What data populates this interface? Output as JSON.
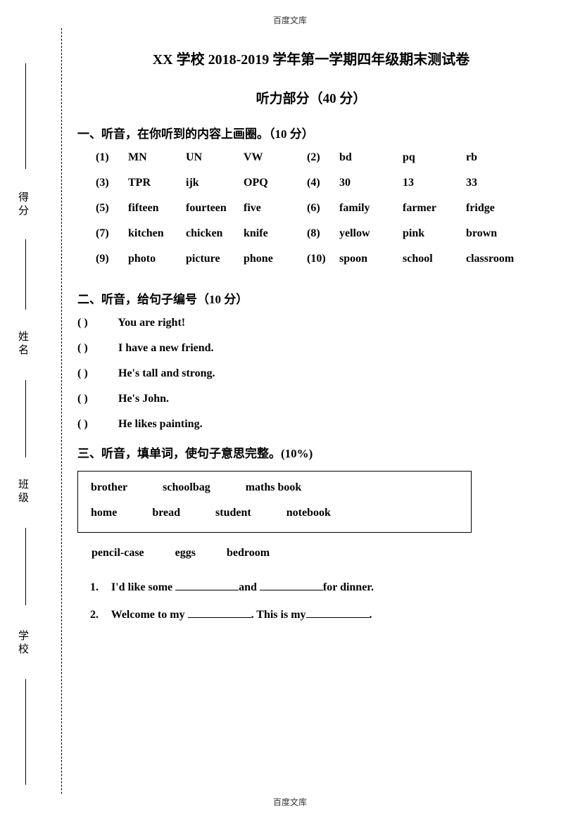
{
  "watermark": "百度文库",
  "title": "XX 学校 2018-2019 学年第一学期四年级期末测试卷",
  "subtitle": "听力部分（40 分）",
  "binding_labels": {
    "defen": "得分",
    "xingming": "姓名",
    "banji": "班级",
    "xuexiao": "学校"
  },
  "section1": {
    "heading": "一、听音，在你听到的内容上画圈。（10 分）",
    "rows": [
      {
        "ln": "(1)",
        "lo": [
          "MN",
          "UN",
          "VW"
        ],
        "rn": "(2)",
        "ro": [
          "bd",
          "pq",
          "rb"
        ]
      },
      {
        "ln": "(3)",
        "lo": [
          "TPR",
          "ijk",
          "OPQ"
        ],
        "rn": "(4)",
        "ro": [
          "30",
          "13",
          "33"
        ]
      },
      {
        "ln": "(5)",
        "lo": [
          "fifteen",
          "fourteen",
          "five"
        ],
        "rn": "(6)",
        "ro": [
          "family",
          "farmer",
          "fridge"
        ]
      },
      {
        "ln": "(7)",
        "lo": [
          "kitchen",
          "chicken",
          "knife"
        ],
        "rn": "(8)",
        "ro": [
          "yellow",
          "pink",
          "brown"
        ]
      },
      {
        "ln": "(9)",
        "lo": [
          "photo",
          "picture",
          "phone"
        ],
        "rn": "(10)",
        "ro": [
          "spoon",
          "school",
          "classroom"
        ]
      }
    ]
  },
  "section2": {
    "heading": "二、听音，给句子编号（10 分）",
    "items": [
      "You are right!",
      "I have a new friend.",
      "He's tall and strong.",
      "He's John.",
      "He likes painting."
    ]
  },
  "section3": {
    "heading": "三、听音，填单词，使句子意思完整。(10%)",
    "box_rows": [
      [
        "brother",
        "schoolbag",
        "maths book"
      ],
      [
        "home",
        "bread",
        "student",
        "notebook"
      ]
    ],
    "extra_row": [
      "pencil-case",
      "eggs",
      "bedroom"
    ],
    "items": [
      {
        "n": "1.",
        "pre": "I'd like some ",
        "mid": "and ",
        "post": "for dinner."
      },
      {
        "n": "2.",
        "pre": "Welcome to my ",
        "mid": ". This is my",
        "post": "."
      }
    ]
  }
}
